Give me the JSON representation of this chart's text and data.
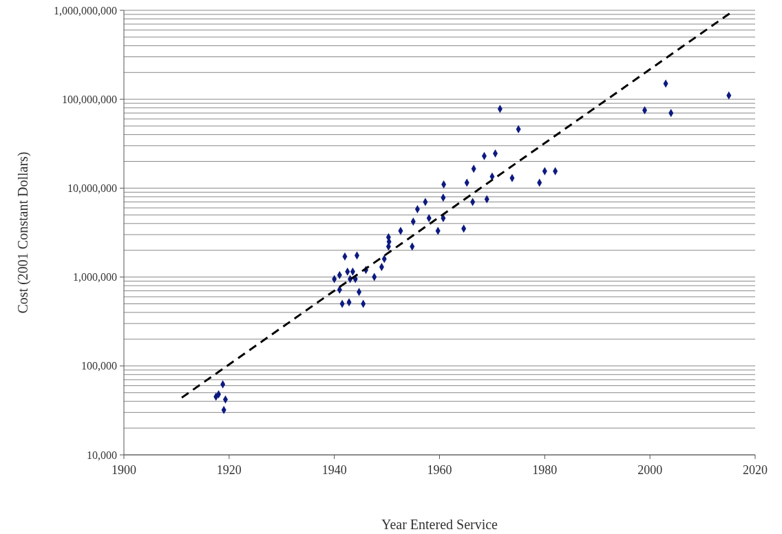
{
  "chart_data": {
    "type": "scatter",
    "xlabel": "Year Entered Service",
    "ylabel": "Cost (2001 Constant Dollars)",
    "log": "y",
    "grid": "y",
    "xlim": [
      1900,
      2020
    ],
    "xticks": [
      1900,
      1920,
      1940,
      1960,
      1980,
      2000,
      2020
    ],
    "ylim": [
      10000,
      1000000000
    ],
    "yticks": [
      {
        "value": 10000,
        "label": "10,000"
      },
      {
        "value": 20000,
        "label": null
      },
      {
        "value": 30000,
        "label": null
      },
      {
        "value": 40000,
        "label": null
      },
      {
        "value": 50000,
        "label": null
      },
      {
        "value": 60000,
        "label": null
      },
      {
        "value": 70000,
        "label": null
      },
      {
        "value": 80000,
        "label": null
      },
      {
        "value": 90000,
        "label": null
      },
      {
        "value": 100000,
        "label": "100,000"
      },
      {
        "value": 200000,
        "label": null
      },
      {
        "value": 300000,
        "label": null
      },
      {
        "value": 400000,
        "label": null
      },
      {
        "value": 500000,
        "label": null
      },
      {
        "value": 600000,
        "label": null
      },
      {
        "value": 700000,
        "label": null
      },
      {
        "value": 800000,
        "label": null
      },
      {
        "value": 900000,
        "label": null
      },
      {
        "value": 1000000,
        "label": "1,000,000"
      },
      {
        "value": 2000000,
        "label": null
      },
      {
        "value": 3000000,
        "label": null
      },
      {
        "value": 4000000,
        "label": null
      },
      {
        "value": 5000000,
        "label": null
      },
      {
        "value": 6000000,
        "label": null
      },
      {
        "value": 7000000,
        "label": null
      },
      {
        "value": 8000000,
        "label": null
      },
      {
        "value": 9000000,
        "label": null
      },
      {
        "value": 10000000,
        "label": "10,000,000"
      },
      {
        "value": 20000000,
        "label": null
      },
      {
        "value": 30000000,
        "label": null
      },
      {
        "value": 40000000,
        "label": null
      },
      {
        "value": 50000000,
        "label": null
      },
      {
        "value": 60000000,
        "label": null
      },
      {
        "value": 70000000,
        "label": null
      },
      {
        "value": 80000000,
        "label": null
      },
      {
        "value": 90000000,
        "label": null
      },
      {
        "value": 100000000,
        "label": "100,000,000"
      },
      {
        "value": 200000000,
        "label": null
      },
      {
        "value": 300000000,
        "label": null
      },
      {
        "value": 400000000,
        "label": null
      },
      {
        "value": 500000000,
        "label": null
      },
      {
        "value": 600000000,
        "label": null
      },
      {
        "value": 700000000,
        "label": null
      },
      {
        "value": 800000000,
        "label": null
      },
      {
        "value": 900000000,
        "label": null
      },
      {
        "value": 1000000000,
        "label": "1,000,000,000"
      }
    ],
    "series": [
      {
        "color": "#0d1a80",
        "marker": "diamond",
        "x": [
          1917.5,
          1918,
          1918.8,
          1919.3,
          1919,
          1940,
          1941,
          1941,
          1941.5,
          1942,
          1942.5,
          1942.8,
          1943,
          1943.5,
          1944,
          1944.3,
          1944.7,
          1945.5,
          1946,
          1947.6,
          1949,
          1949.5,
          1950.3,
          1950.4,
          1950.3,
          1952.6,
          1954.8,
          1955,
          1955.8,
          1957.3,
          1958,
          1959.7,
          1960.7,
          1960.7,
          1960.8,
          1964.6,
          1965.2,
          1966.5,
          1966.3,
          1968.5,
          1969,
          1970,
          1970.6,
          1971.5,
          1973.8,
          1975,
          1979,
          1980,
          1982,
          1999,
          2003,
          2004,
          2015
        ],
        "values": [
          45000,
          48000,
          62000,
          42000,
          32000,
          950000,
          1050000,
          720000,
          500000,
          1700000,
          1150000,
          520000,
          950000,
          1150000,
          950000,
          1750000,
          680000,
          500000,
          1200000,
          1000000,
          1300000,
          1600000,
          2200000,
          2500000,
          2800000,
          3300000,
          2200000,
          4200000,
          5800000,
          7000000,
          4600000,
          3300000,
          4600000,
          7800000,
          11000000,
          3500000,
          11500000,
          16500000,
          7000000,
          23000000,
          7500000,
          13500000,
          24500000,
          78000000,
          13000000,
          46000000,
          11500000,
          15500000,
          15500000,
          75000000,
          150000000,
          70000000,
          110000000
        ]
      },
      {
        "type": "line",
        "color": "#000000",
        "line_style": "dashed",
        "marker": "none",
        "x": [
          1911,
          2016
        ],
        "values": [
          44000,
          1000000000
        ]
      }
    ]
  }
}
